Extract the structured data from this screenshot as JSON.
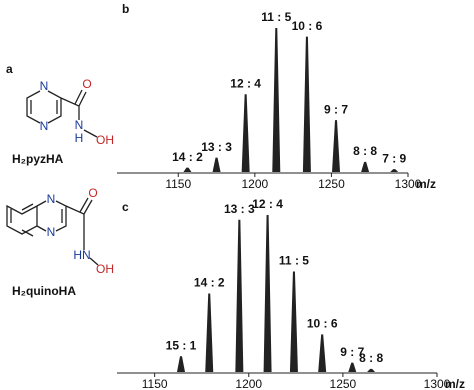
{
  "figure_labels": [
    "a",
    "b",
    "c"
  ],
  "structures": [
    {
      "name": "H₂pyzHA",
      "atoms": [
        "N",
        "N",
        "O",
        "N",
        "H",
        "OH"
      ]
    },
    {
      "name": "H₂quinoHA",
      "atoms": [
        "N",
        "N",
        "O",
        "HN",
        "OH"
      ]
    }
  ],
  "chart_data": [
    {
      "type": "spectrum",
      "x_label": "m/z",
      "xlim": [
        1110,
        1300
      ],
      "xticks": [
        1150,
        1200,
        1250,
        1300
      ],
      "ylim": [
        0,
        100
      ],
      "color": "#222222",
      "categories": [
        "14 : 2",
        "13 : 3",
        "12 : 4",
        "11 : 5",
        "10 : 6",
        "9 : 7",
        "8 : 8",
        "7 : 9"
      ],
      "x": [
        1156,
        1175,
        1194,
        1214,
        1234,
        1253,
        1272,
        1291
      ],
      "values": [
        3,
        10,
        54,
        100,
        94,
        36,
        7,
        2
      ]
    },
    {
      "type": "spectrum",
      "x_label": "m/z",
      "xlim": [
        1130,
        1300
      ],
      "xticks": [
        1150,
        1200,
        1250,
        1300
      ],
      "ylim": [
        0,
        100
      ],
      "color": "#222222",
      "categories": [
        "15 : 1",
        "14 : 2",
        "13 : 3",
        "12 : 4",
        "11 : 5",
        "10 : 6",
        "9 : 7",
        "8 : 8"
      ],
      "x": [
        1164,
        1179,
        1195,
        1210,
        1224,
        1239,
        1255,
        1265
      ],
      "values": [
        10,
        50,
        97,
        100,
        64,
        24,
        6,
        2
      ]
    }
  ]
}
